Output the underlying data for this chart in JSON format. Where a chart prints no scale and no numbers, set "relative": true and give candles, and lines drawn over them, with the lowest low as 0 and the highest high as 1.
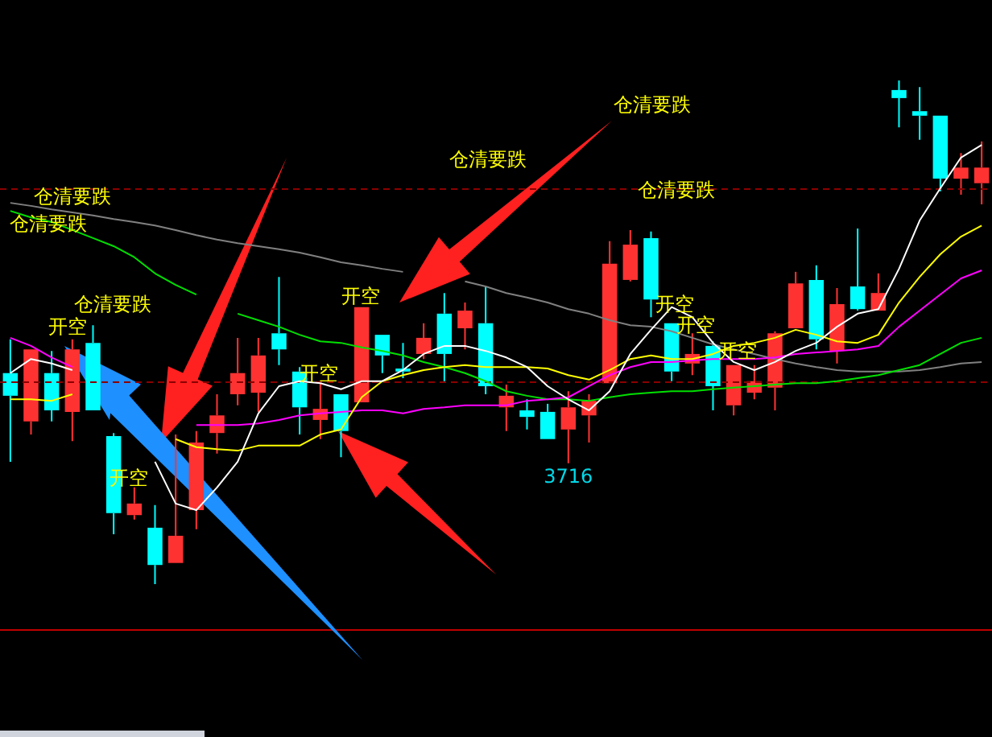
{
  "chart_data": {
    "type": "candlestick",
    "relative": true,
    "categories": [
      null,
      null,
      null,
      null,
      null,
      null,
      null,
      null,
      null,
      null,
      null,
      null,
      null,
      null,
      null,
      null,
      null,
      null,
      null,
      null,
      null,
      null,
      null,
      null,
      null,
      null,
      null,
      null,
      null,
      null,
      null,
      null,
      null,
      null,
      null,
      null,
      null,
      null,
      null,
      null,
      null,
      null,
      null,
      null,
      null,
      null,
      null,
      null
    ],
    "ohlc": [
      [
        0.419,
        0.486,
        0.243,
        0.374
      ],
      [
        0.323,
        0.466,
        0.297,
        0.466
      ],
      [
        0.419,
        0.463,
        0.323,
        0.345
      ],
      [
        0.342,
        0.486,
        0.284,
        0.466
      ],
      [
        0.479,
        0.514,
        0.345,
        0.345
      ],
      [
        0.294,
        0.3,
        0.099,
        0.141
      ],
      [
        0.137,
        0.192,
        0.128,
        0.16
      ],
      [
        0.112,
        0.157,
        0,
        0.038
      ],
      [
        0.042,
        0.297,
        0.042,
        0.096
      ],
      [
        0.147,
        0.304,
        0.109,
        0.281
      ],
      [
        0.3,
        0.377,
        0.259,
        0.335
      ],
      [
        0.377,
        0.489,
        0.355,
        0.419
      ],
      [
        0.38,
        0.489,
        0.342,
        0.454
      ],
      [
        0.498,
        0.61,
        0.435,
        0.466
      ],
      [
        0.422,
        0.431,
        0.297,
        0.351
      ],
      [
        0.326,
        0.399,
        0.288,
        0.348
      ],
      [
        0.377,
        0.377,
        0.252,
        0.304
      ],
      [
        0.361,
        0.55,
        0.361,
        0.55
      ],
      [
        0.495,
        0.495,
        0.419,
        0.454
      ],
      [
        0.428,
        0.479,
        0.409,
        0.422
      ],
      [
        0.457,
        0.518,
        0.447,
        0.489
      ],
      [
        0.537,
        0.578,
        0.403,
        0.457
      ],
      [
        0.508,
        0.559,
        0.466,
        0.543
      ],
      [
        0.518,
        0.591,
        0.377,
        0.393
      ],
      [
        0.351,
        0.396,
        0.304,
        0.374
      ],
      [
        0.345,
        0.367,
        0.307,
        0.332
      ],
      [
        0.342,
        0.358,
        0.288,
        0.288
      ],
      [
        0.307,
        0.383,
        0.24,
        0.351
      ],
      [
        0.335,
        0.377,
        0.281,
        0.364
      ],
      [
        0.399,
        0.681,
        0.399,
        0.636
      ],
      [
        0.604,
        0.703,
        0.601,
        0.674
      ],
      [
        0.687,
        0.7,
        0.53,
        0.565
      ],
      [
        0.518,
        0.518,
        0.403,
        0.422
      ],
      [
        0.438,
        0.498,
        0.415,
        0.457
      ],
      [
        0.473,
        0.482,
        0.345,
        0.393
      ],
      [
        0.355,
        0.435,
        0.335,
        0.435
      ],
      [
        0.38,
        0.435,
        0.367,
        0.403
      ],
      [
        0.39,
        0.502,
        0.345,
        0.498
      ],
      [
        0.508,
        0.62,
        0.508,
        0.597
      ],
      [
        0.604,
        0.633,
        0.466,
        0.486
      ],
      [
        0.463,
        0.588,
        0.438,
        0.556
      ],
      [
        0.591,
        0.706,
        0.543,
        0.546
      ],
      [
        0.543,
        0.617,
        0.543,
        0.578
      ],
      [
        0.981,
        1,
        0.907,
        0.965
      ],
      [
        0.939,
        0.987,
        0.882,
        0.93
      ],
      [
        0.93,
        0.93,
        0.78,
        0.805
      ],
      [
        0.805,
        0.856,
        0.773,
        0.827
      ],
      [
        0.796,
        0.879,
        0.754,
        0.827
      ]
    ],
    "colors": [
      "#00ffff",
      "#ff3232",
      "#00ffff",
      "#ff3232",
      "#00ffff",
      "#00ffff",
      "#ff3232",
      "#00ffff",
      "#ff3232",
      "#ff3232",
      "#ff3232",
      "#ff3232",
      "#ff3232",
      "#00ffff",
      "#00ffff",
      "#ff3232",
      "#00ffff",
      "#ff3232",
      "#00ffff",
      "#00ffff",
      "#ff3232",
      "#00ffff",
      "#ff3232",
      "#00ffff",
      "#ff3232",
      "#00ffff",
      "#00ffff",
      "#ff3232",
      "#ff3232",
      "#ff3232",
      "#ff3232",
      "#00ffff",
      "#00ffff",
      "#ff3232",
      "#00ffff",
      "#ff3232",
      "#ff3232",
      "#ff3232",
      "#ff3232",
      "#00ffff",
      "#ff3232",
      "#00ffff",
      "#ff3232",
      "#00ffff",
      "#00ffff",
      "#00ffff",
      "#ff3232",
      "#ff3232"
    ],
    "series": [
      {
        "type": "line",
        "color": "#ffffff",
        "values": [
          0.419,
          0.447,
          0.438,
          0.425,
          null,
          null,
          null,
          0.243,
          0.16,
          0.147,
          0.192,
          0.243,
          0.339,
          0.393,
          0.403,
          0.399,
          0.387,
          0.403,
          0.403,
          0.425,
          0.457,
          0.473,
          0.473,
          0.463,
          0.45,
          0.431,
          0.393,
          0.367,
          0.345,
          0.383,
          0.457,
          0.505,
          0.55,
          0.53,
          0.479,
          0.441,
          0.425,
          0.441,
          0.463,
          0.479,
          0.511,
          0.537,
          0.546,
          0.626,
          0.722,
          0.786,
          0.847,
          0.872
        ]
      },
      {
        "type": "line",
        "color": "#ffff00",
        "values": [
          0.367,
          0.367,
          0.364,
          0.377,
          null,
          null,
          null,
          null,
          0.288,
          0.272,
          0.268,
          0.265,
          0.275,
          0.275,
          0.275,
          0.297,
          0.307,
          0.371,
          0.403,
          0.415,
          0.425,
          0.431,
          0.435,
          0.431,
          0.431,
          0.431,
          0.428,
          0.415,
          0.406,
          0.425,
          0.447,
          0.454,
          0.447,
          0.447,
          0.457,
          0.473,
          0.479,
          0.489,
          0.505,
          0.495,
          0.482,
          0.479,
          0.495,
          0.559,
          0.61,
          0.655,
          0.69,
          0.712
        ]
      },
      {
        "type": "line",
        "color": "#ff00ff",
        "values": [
          0.489,
          0.473,
          0.45,
          0.431,
          null,
          null,
          null,
          null,
          null,
          0.316,
          0.316,
          0.316,
          0.319,
          0.326,
          0.335,
          0.339,
          0.342,
          0.345,
          0.345,
          0.339,
          0.348,
          0.351,
          0.355,
          0.355,
          0.355,
          0.364,
          0.367,
          0.371,
          0.393,
          0.415,
          0.431,
          0.441,
          0.441,
          0.444,
          0.447,
          0.447,
          0.447,
          0.45,
          0.457,
          0.46,
          0.463,
          0.466,
          0.473,
          0.511,
          0.543,
          0.575,
          0.607,
          0.623
        ]
      },
      {
        "type": "line",
        "color": "#00e000",
        "values": [
          0.741,
          0.728,
          0.719,
          0.703,
          0.687,
          0.671,
          0.649,
          0.617,
          0.594,
          0.575,
          null,
          0.537,
          0.524,
          0.511,
          0.495,
          0.482,
          0.479,
          0.47,
          0.463,
          0.454,
          0.441,
          0.431,
          0.419,
          0.403,
          0.383,
          0.374,
          0.367,
          0.367,
          0.364,
          0.371,
          0.377,
          0.38,
          0.383,
          0.383,
          0.387,
          0.39,
          0.393,
          0.396,
          0.399,
          0.399,
          0.403,
          0.409,
          0.415,
          0.425,
          0.435,
          0.457,
          0.479,
          0.489
        ]
      },
      {
        "type": "line",
        "color": "#808080",
        "values": [
          0.757,
          0.751,
          0.744,
          0.738,
          0.732,
          0.725,
          0.719,
          0.712,
          0.703,
          0.693,
          0.684,
          0.677,
          0.671,
          0.665,
          0.658,
          0.649,
          0.639,
          0.633,
          0.626,
          0.62,
          null,
          null,
          0.601,
          0.591,
          0.578,
          0.569,
          0.559,
          0.546,
          0.537,
          0.524,
          0.514,
          0.511,
          0.502,
          0.489,
          0.476,
          0.466,
          0.457,
          0.447,
          0.438,
          0.431,
          0.425,
          0.422,
          0.422,
          0.422,
          0.425,
          0.431,
          0.438,
          0.441
        ]
      }
    ],
    "ref_lines": [
      {
        "axis": "y",
        "value": 0.786,
        "color": "#8b0000",
        "line_style": "dashed"
      },
      {
        "axis": "y",
        "value": 0.403,
        "color": "#8b0000",
        "line_style": "dashed"
      }
    ],
    "annotations": [
      "仓清要跌",
      "仓清要跌",
      "仓清要跌",
      "仓清要跌",
      "仓清要跌",
      "仓清要跌",
      "开空",
      "开空",
      "开空",
      "开空",
      "开空",
      "开空",
      "开空",
      {
        "text": "3716",
        "y": 0.24
      }
    ]
  }
}
